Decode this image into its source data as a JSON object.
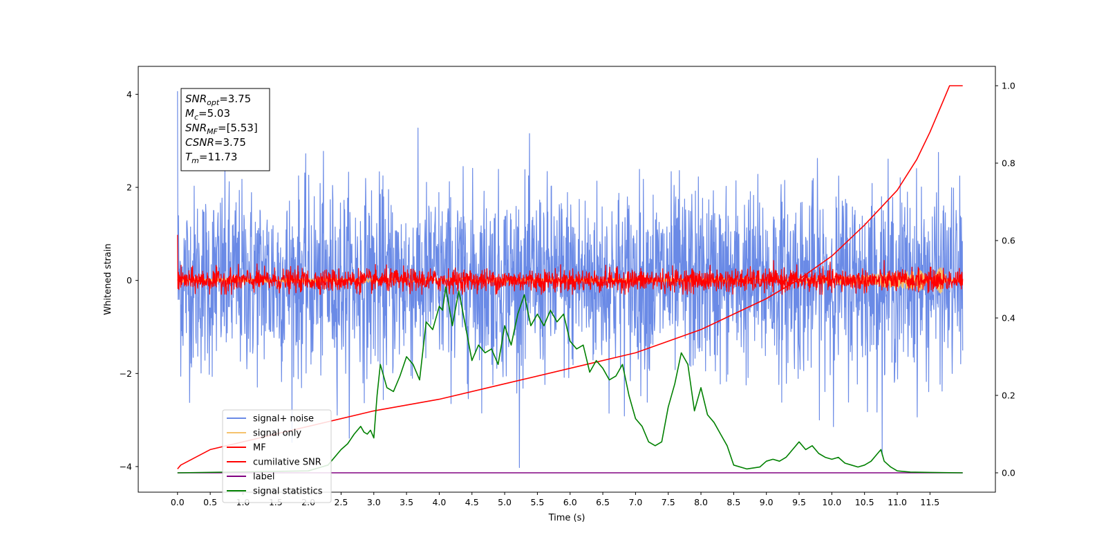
{
  "chart_data": {
    "type": "line",
    "title": "",
    "xlabel": "Time (s)",
    "ylabel": "Whitened strain",
    "y2label": "",
    "xlim": [
      -0.6,
      12.5
    ],
    "ylim": [
      -4.55,
      4.6
    ],
    "y2lim": [
      -0.05,
      1.05
    ],
    "x_ticks": [
      0.0,
      0.5,
      1.0,
      1.5,
      2.0,
      2.5,
      3.0,
      3.5,
      4.0,
      4.5,
      5.0,
      5.5,
      6.0,
      6.5,
      7.0,
      7.5,
      8.0,
      8.5,
      9.0,
      9.5,
      10.0,
      10.5,
      11.0,
      11.5
    ],
    "x_tick_labels": [
      "0.0",
      "0.5",
      "1.0",
      "1.5",
      "2.0",
      "2.5",
      "3.0",
      "3.5",
      "4.0",
      "4.5",
      "5.0",
      "5.5",
      "6.0",
      "6.5",
      "7.0",
      "7.5",
      "8.0",
      "8.5",
      "9.0",
      "9.5",
      "10.0",
      "10.5",
      "11.0",
      "11.5"
    ],
    "y_ticks": [
      -4,
      -2,
      0,
      2,
      4
    ],
    "y_tick_labels": [
      "−4",
      "−2",
      "0",
      "2",
      "4"
    ],
    "y2_ticks": [
      0.0,
      0.2,
      0.4,
      0.6,
      0.8,
      1.0
    ],
    "y2_tick_labels": [
      "0.0",
      "0.2",
      "0.4",
      "0.6",
      "0.8",
      "1.0"
    ],
    "grid": false,
    "legend_position": "bottom-left",
    "series": [
      {
        "name": "signal+ noise",
        "axis": "left",
        "color": "#6a8ae6",
        "kind": "noise",
        "x_range": [
          0.0,
          12.0
        ],
        "sigma": 1.0,
        "y_extent": [
          -4.1,
          4.15
        ]
      },
      {
        "name": "signal only",
        "axis": "left",
        "color": "#f5c26b",
        "kind": "chirp",
        "x_range": [
          0.0,
          12.0
        ]
      },
      {
        "name": "MF",
        "axis": "left",
        "color": "#ff0000",
        "kind": "noise",
        "x_range": [
          0.0,
          12.0
        ],
        "sigma": 0.12,
        "y_extent": [
          -0.3,
          1.0
        ]
      },
      {
        "name": "cumilative SNR",
        "axis": "right",
        "color": "#ff0000",
        "kind": "curve",
        "x": [
          0.0,
          0.05,
          0.5,
          1.0,
          2.0,
          3.0,
          4.0,
          5.0,
          6.0,
          7.0,
          7.5,
          8.0,
          8.5,
          9.0,
          9.5,
          10.0,
          10.5,
          11.0,
          11.3,
          11.5,
          11.7,
          11.8,
          12.0
        ],
        "y": [
          0.01,
          0.02,
          0.06,
          0.08,
          0.12,
          0.16,
          0.19,
          0.23,
          0.27,
          0.31,
          0.34,
          0.37,
          0.41,
          0.45,
          0.5,
          0.56,
          0.64,
          0.73,
          0.81,
          0.88,
          0.96,
          1.0,
          1.0
        ]
      },
      {
        "name": "label",
        "axis": "right",
        "color": "#800080",
        "kind": "curve",
        "x": [
          0.0,
          12.0
        ],
        "y": [
          0.0,
          0.0
        ]
      },
      {
        "name": "signal statistics",
        "axis": "right",
        "color": "#008000",
        "kind": "curve",
        "x": [
          0.0,
          2.0,
          2.3,
          2.5,
          2.6,
          2.7,
          2.8,
          2.85,
          2.9,
          2.95,
          3.0,
          3.05,
          3.1,
          3.2,
          3.3,
          3.4,
          3.5,
          3.6,
          3.7,
          3.8,
          3.9,
          4.0,
          4.05,
          4.1,
          4.2,
          4.3,
          4.4,
          4.5,
          4.6,
          4.7,
          4.8,
          4.9,
          5.0,
          5.1,
          5.2,
          5.3,
          5.4,
          5.5,
          5.6,
          5.7,
          5.8,
          5.9,
          6.0,
          6.1,
          6.2,
          6.3,
          6.4,
          6.5,
          6.6,
          6.7,
          6.8,
          6.9,
          7.0,
          7.1,
          7.2,
          7.3,
          7.4,
          7.5,
          7.6,
          7.7,
          7.8,
          7.9,
          8.0,
          8.1,
          8.2,
          8.3,
          8.4,
          8.5,
          8.7,
          8.9,
          9.0,
          9.1,
          9.2,
          9.3,
          9.4,
          9.5,
          9.6,
          9.7,
          9.8,
          9.9,
          10.0,
          10.1,
          10.2,
          10.3,
          10.4,
          10.5,
          10.6,
          10.7,
          10.75,
          10.8,
          10.9,
          11.0,
          11.2,
          11.5,
          12.0
        ],
        "y": [
          0.0,
          0.005,
          0.02,
          0.06,
          0.075,
          0.1,
          0.12,
          0.105,
          0.1,
          0.11,
          0.09,
          0.2,
          0.28,
          0.22,
          0.21,
          0.25,
          0.3,
          0.28,
          0.24,
          0.39,
          0.37,
          0.43,
          0.42,
          0.48,
          0.38,
          0.47,
          0.38,
          0.29,
          0.33,
          0.31,
          0.32,
          0.28,
          0.38,
          0.33,
          0.41,
          0.46,
          0.38,
          0.41,
          0.38,
          0.42,
          0.39,
          0.41,
          0.34,
          0.32,
          0.33,
          0.26,
          0.29,
          0.27,
          0.24,
          0.25,
          0.28,
          0.2,
          0.14,
          0.12,
          0.08,
          0.07,
          0.08,
          0.17,
          0.23,
          0.31,
          0.28,
          0.16,
          0.22,
          0.15,
          0.13,
          0.1,
          0.07,
          0.02,
          0.01,
          0.015,
          0.03,
          0.035,
          0.03,
          0.04,
          0.06,
          0.08,
          0.06,
          0.07,
          0.05,
          0.04,
          0.035,
          0.04,
          0.025,
          0.02,
          0.015,
          0.02,
          0.03,
          0.05,
          0.06,
          0.03,
          0.015,
          0.005,
          0.002,
          0.001,
          0.0
        ]
      }
    ],
    "annotation": {
      "lines": [
        {
          "var": "SNR",
          "sub": "opt",
          "value": "=3.75"
        },
        {
          "var": "M",
          "sub": "c",
          "value": "=5.03"
        },
        {
          "var": "SNR",
          "sub": "MF",
          "value": "=[5.53]"
        },
        {
          "var": "CSNR",
          "sub": "",
          "value": "=3.75"
        },
        {
          "var": "T",
          "sub": "m",
          "value": "=11.73"
        }
      ]
    }
  }
}
